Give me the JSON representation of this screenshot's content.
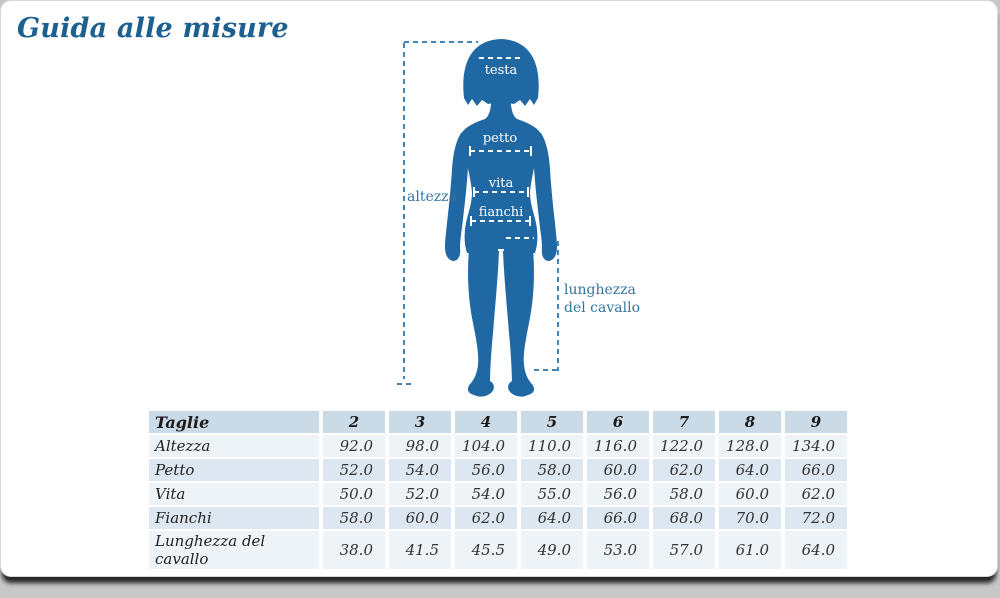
{
  "page": {
    "title": "Guida alle misure"
  },
  "figure": {
    "labels": {
      "testa": "testa",
      "petto": "petto",
      "vita": "vita",
      "fianchi": "fianchi",
      "altezza": "altezza",
      "cavallo": "lunghezza del cavallo"
    },
    "colors": {
      "silhouette": "#2068a3",
      "guide_line": "#4483b5",
      "guide_text": "#35749f",
      "on_body_line": "#ffffff"
    }
  },
  "table": {
    "header_label": "Taglie",
    "sizes": [
      "2",
      "3",
      "4",
      "5",
      "6",
      "7",
      "8",
      "9"
    ],
    "rows": [
      {
        "label": "Altezza",
        "values": [
          "92.0",
          "98.0",
          "104.0",
          "110.0",
          "116.0",
          "122.0",
          "128.0",
          "134.0"
        ]
      },
      {
        "label": "Petto",
        "values": [
          "52.0",
          "54.0",
          "56.0",
          "58.0",
          "60.0",
          "62.0",
          "64.0",
          "66.0"
        ]
      },
      {
        "label": "Vita",
        "values": [
          "50.0",
          "52.0",
          "54.0",
          "55.0",
          "56.0",
          "58.0",
          "60.0",
          "62.0"
        ]
      },
      {
        "label": "Fianchi",
        "values": [
          "58.0",
          "60.0",
          "62.0",
          "64.0",
          "66.0",
          "68.0",
          "70.0",
          "72.0"
        ]
      },
      {
        "label": "Lunghezza del cavallo",
        "values": [
          "38.0",
          "41.5",
          "45.5",
          "49.0",
          "53.0",
          "57.0",
          "61.0",
          "64.0"
        ]
      }
    ]
  },
  "theme": {
    "title_color": "#1d608f",
    "table_header_bg": "#cbdae7",
    "row_odd_bg": "#eef3f8",
    "row_even_bg": "#dde7f1",
    "card_bg": "#ffffff",
    "page_bg": "#c7c7c7"
  }
}
